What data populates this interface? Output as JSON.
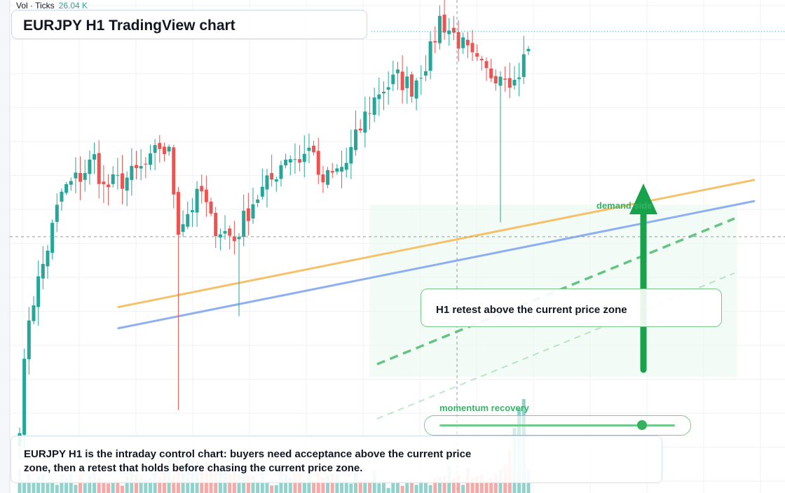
{
  "header": {
    "volume_label": "Vol · Ticks",
    "volume_value": "26.04 K"
  },
  "title": "EURJPY H1 TradingView chart",
  "note": "EURJPY H1 is the intraday control chart: buyers need acceptance above the current price zone, then a retest that holds before chasing the current price zone.",
  "annotations": {
    "demand_label": "demand side",
    "retest_label": "H1 retest above the current price zone",
    "momentum_label": "momentum recovery",
    "momentum_level": 0.86
  },
  "colors": {
    "up": "#26a69a",
    "down": "#ef5350",
    "arrow": "#16a34a",
    "orange_line": "#f5c26b",
    "blue_line": "#8fb0f0",
    "dashed": "#4cbb6f"
  },
  "chart_data": {
    "type": "candlestick",
    "symbol": "EURJPY",
    "timeframe": "H1",
    "y_range": [
      0,
      100
    ],
    "bar_count": 110,
    "series_anchors": [
      [
        0,
        3
      ],
      [
        2,
        28
      ],
      [
        5,
        40
      ],
      [
        9,
        57
      ],
      [
        13,
        61
      ],
      [
        16,
        65
      ],
      [
        18,
        58
      ],
      [
        24,
        61
      ],
      [
        28,
        64
      ],
      [
        30,
        68
      ],
      [
        32,
        66
      ],
      [
        34,
        49
      ],
      [
        37,
        54
      ],
      [
        39,
        57
      ],
      [
        41,
        50
      ],
      [
        46,
        46
      ],
      [
        50,
        55
      ],
      [
        54,
        60
      ],
      [
        57,
        66
      ],
      [
        60,
        65
      ],
      [
        63,
        68
      ],
      [
        64,
        59
      ],
      [
        67,
        61
      ],
      [
        70,
        64
      ],
      [
        74,
        75
      ],
      [
        77,
        81
      ],
      [
        81,
        84
      ],
      [
        84,
        82
      ],
      [
        88,
        90
      ],
      [
        90,
        98
      ],
      [
        94,
        93
      ],
      [
        97,
        88
      ],
      [
        100,
        85
      ],
      [
        104,
        86
      ],
      [
        106,
        83
      ],
      [
        109,
        91
      ]
    ],
    "volume_anchors": [
      [
        0,
        4
      ],
      [
        22,
        3
      ],
      [
        40,
        11
      ],
      [
        45,
        6
      ],
      [
        55,
        2
      ],
      [
        60,
        5
      ],
      [
        80,
        2
      ],
      [
        100,
        4
      ],
      [
        104,
        12
      ],
      [
        108,
        40
      ],
      [
        109,
        10
      ]
    ],
    "price_lines": [
      0.45,
      0.07
    ],
    "orange_trendline": [
      [
        0.14,
        0.3
      ],
      [
        0.96,
        0.6
      ]
    ],
    "blue_trendline": [
      [
        0.14,
        0.25
      ],
      [
        0.96,
        0.55
      ]
    ]
  }
}
